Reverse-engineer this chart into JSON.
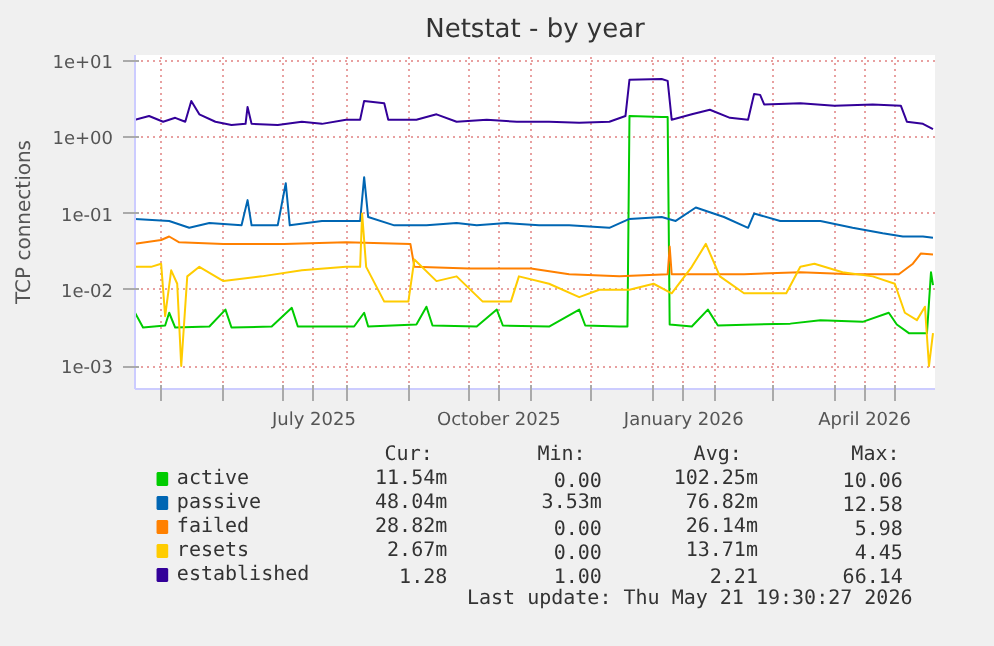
{
  "chart_data": {
    "type": "line",
    "title": "Netstat - by year",
    "ylabel": "TCP connections",
    "log": "y",
    "grid": true,
    "legend": "bottom",
    "xlim": [
      "2025-04-18",
      "2026-05-21"
    ],
    "xticks": [
      {
        "value": "2025-05-01",
        "label": null
      },
      {
        "value": "2025-06-01",
        "label": null
      },
      {
        "value": "2025-07-01",
        "label": null
      },
      {
        "value": "2025-07-16",
        "label": "July 2025"
      },
      {
        "value": "2025-08-01",
        "label": null
      },
      {
        "value": "2025-09-01",
        "label": null
      },
      {
        "value": "2025-10-01",
        "label": null
      },
      {
        "value": "2025-10-16",
        "label": "October 2025"
      },
      {
        "value": "2025-11-01",
        "label": null
      },
      {
        "value": "2025-12-01",
        "label": null
      },
      {
        "value": "2026-01-01",
        "label": null
      },
      {
        "value": "2026-01-16",
        "label": "January 2026"
      },
      {
        "value": "2026-02-01",
        "label": null
      },
      {
        "value": "2026-03-01",
        "label": null
      },
      {
        "value": "2026-04-01",
        "label": null
      },
      {
        "value": "2026-04-16",
        "label": "April 2026"
      },
      {
        "value": "2026-05-01",
        "label": null
      }
    ],
    "ylim": [
      0.0005,
      12
    ],
    "yticks": [
      {
        "value": 0.001,
        "label": "1e-03"
      },
      {
        "value": 0.01,
        "label": "1e-02"
      },
      {
        "value": 0.1,
        "label": "1e-01"
      },
      {
        "value": 1,
        "label": "1e+00"
      },
      {
        "value": 10,
        "label": "1e+01"
      }
    ],
    "series": [
      {
        "name": "active",
        "color": "#00cc00",
        "x": [
          "2025-04-18",
          "2025-04-22",
          "2025-05-03",
          "2025-05-05",
          "2025-05-08",
          "2025-05-25",
          "2025-06-02",
          "2025-06-05",
          "2025-06-25",
          "2025-07-05",
          "2025-07-08",
          "2025-08-05",
          "2025-08-10",
          "2025-08-12",
          "2025-09-05",
          "2025-09-10",
          "2025-09-13",
          "2025-10-05",
          "2025-10-15",
          "2025-10-18",
          "2025-11-10",
          "2025-11-25",
          "2025-11-28",
          "2025-12-15",
          "2025-12-19",
          "2025-12-20",
          "2026-01-05",
          "2026-01-08",
          "2026-01-09",
          "2026-01-20",
          "2026-01-28",
          "2026-02-02",
          "2026-02-20",
          "2026-03-10",
          "2026-03-25",
          "2026-04-15",
          "2026-04-28",
          "2026-05-02",
          "2026-05-08",
          "2026-05-17",
          "2026-05-19",
          "2026-05-20"
        ],
        "values": [
          0.005,
          0.0032,
          0.0034,
          0.005,
          0.0032,
          0.0033,
          0.0055,
          0.0032,
          0.0033,
          0.0058,
          0.0033,
          0.0033,
          0.005,
          0.0033,
          0.0035,
          0.006,
          0.0034,
          0.0033,
          0.0055,
          0.0034,
          0.0033,
          0.0055,
          0.0034,
          0.0033,
          0.0033,
          1.9,
          1.85,
          1.85,
          0.0035,
          0.0033,
          0.0055,
          0.0034,
          0.0035,
          0.0036,
          0.004,
          0.0038,
          0.005,
          0.0035,
          0.0027,
          0.0027,
          0.017,
          0.0115
        ]
      },
      {
        "name": "passive",
        "color": "#0066b3",
        "x": [
          "2025-04-18",
          "2025-05-05",
          "2025-05-15",
          "2025-05-25",
          "2025-06-10",
          "2025-06-13",
          "2025-06-15",
          "2025-06-28",
          "2025-07-02",
          "2025-07-04",
          "2025-07-20",
          "2025-08-08",
          "2025-08-10",
          "2025-08-12",
          "2025-08-25",
          "2025-09-10",
          "2025-09-25",
          "2025-10-05",
          "2025-10-20",
          "2025-11-05",
          "2025-11-20",
          "2025-12-10",
          "2025-12-20",
          "2026-01-05",
          "2026-01-12",
          "2026-01-22",
          "2026-02-05",
          "2026-02-17",
          "2026-02-20",
          "2026-03-05",
          "2026-03-25",
          "2026-04-10",
          "2026-04-25",
          "2026-05-05",
          "2026-05-15",
          "2026-05-20"
        ],
        "values": [
          0.085,
          0.08,
          0.065,
          0.075,
          0.07,
          0.15,
          0.07,
          0.07,
          0.25,
          0.07,
          0.08,
          0.08,
          0.3,
          0.09,
          0.07,
          0.07,
          0.075,
          0.07,
          0.075,
          0.07,
          0.07,
          0.065,
          0.085,
          0.09,
          0.08,
          0.12,
          0.09,
          0.065,
          0.1,
          0.08,
          0.08,
          0.065,
          0.055,
          0.05,
          0.05,
          0.048
        ]
      },
      {
        "name": "failed",
        "color": "#ff8000",
        "x": [
          "2025-04-18",
          "2025-05-01",
          "2025-05-05",
          "2025-05-10",
          "2025-06-01",
          "2025-07-01",
          "2025-08-01",
          "2025-09-02",
          "2025-09-04",
          "2025-10-01",
          "2025-11-01",
          "2025-11-20",
          "2025-12-15",
          "2026-01-08",
          "2026-01-09",
          "2026-01-10",
          "2026-02-15",
          "2026-03-15",
          "2026-04-10",
          "2026-05-03",
          "2026-05-10",
          "2026-05-14",
          "2026-05-20"
        ],
        "values": [
          0.04,
          0.045,
          0.05,
          0.042,
          0.04,
          0.04,
          0.042,
          0.04,
          0.02,
          0.019,
          0.019,
          0.016,
          0.015,
          0.016,
          0.037,
          0.016,
          0.016,
          0.017,
          0.016,
          0.016,
          0.022,
          0.03,
          0.029
        ]
      },
      {
        "name": "resets",
        "color": "#ffcc00",
        "x": [
          "2025-04-18",
          "2025-04-26",
          "2025-05-01",
          "2025-05-03",
          "2025-05-06",
          "2025-05-09",
          "2025-05-11",
          "2025-05-14",
          "2025-05-20",
          "2025-06-01",
          "2025-06-20",
          "2025-07-10",
          "2025-08-01",
          "2025-08-08",
          "2025-08-09",
          "2025-08-11",
          "2025-08-20",
          "2025-09-01",
          "2025-09-04",
          "2025-09-15",
          "2025-09-25",
          "2025-10-08",
          "2025-10-22",
          "2025-10-26",
          "2025-11-10",
          "2025-11-25",
          "2025-12-05",
          "2025-12-20",
          "2026-01-01",
          "2026-01-10",
          "2026-01-20",
          "2026-01-27",
          "2026-02-03",
          "2026-02-15",
          "2026-03-08",
          "2026-03-15",
          "2026-03-22",
          "2026-04-05",
          "2026-04-20",
          "2026-05-01",
          "2026-05-06",
          "2026-05-12",
          "2026-05-16",
          "2026-05-18",
          "2026-05-20"
        ],
        "values": [
          0.02,
          0.02,
          0.022,
          0.0045,
          0.018,
          0.012,
          0.001,
          0.015,
          0.02,
          0.013,
          0.015,
          0.018,
          0.02,
          0.02,
          0.1,
          0.02,
          0.007,
          0.007,
          0.025,
          0.013,
          0.015,
          0.007,
          0.007,
          0.015,
          0.012,
          0.008,
          0.01,
          0.01,
          0.012,
          0.009,
          0.02,
          0.04,
          0.015,
          0.009,
          0.009,
          0.02,
          0.022,
          0.017,
          0.015,
          0.012,
          0.005,
          0.004,
          0.006,
          0.001,
          0.0027
        ]
      },
      {
        "name": "established",
        "color": "#330099",
        "x": [
          "2025-04-18",
          "2025-04-25",
          "2025-05-02",
          "2025-05-08",
          "2025-05-13",
          "2025-05-16",
          "2025-05-20",
          "2025-05-28",
          "2025-06-05",
          "2025-06-12",
          "2025-06-13",
          "2025-06-15",
          "2025-06-28",
          "2025-07-10",
          "2025-07-20",
          "2025-08-01",
          "2025-08-08",
          "2025-08-10",
          "2025-08-20",
          "2025-08-22",
          "2025-09-05",
          "2025-09-15",
          "2025-09-25",
          "2025-10-10",
          "2025-10-25",
          "2025-11-10",
          "2025-11-25",
          "2025-12-10",
          "2025-12-18",
          "2025-12-20",
          "2026-01-05",
          "2026-01-08",
          "2026-01-10",
          "2026-01-20",
          "2026-01-29",
          "2026-02-08",
          "2026-02-17",
          "2026-02-20",
          "2026-02-23",
          "2026-02-25",
          "2026-03-15",
          "2026-04-01",
          "2026-04-20",
          "2026-05-04",
          "2026-05-07",
          "2026-05-15",
          "2026-05-20"
        ],
        "values": [
          1.7,
          1.9,
          1.6,
          1.8,
          1.6,
          3.0,
          2.0,
          1.6,
          1.45,
          1.5,
          2.5,
          1.5,
          1.45,
          1.6,
          1.5,
          1.7,
          1.7,
          3.0,
          2.8,
          1.7,
          1.7,
          2.0,
          1.6,
          1.7,
          1.6,
          1.6,
          1.55,
          1.6,
          1.9,
          5.7,
          5.8,
          5.5,
          1.7,
          2.0,
          2.3,
          1.8,
          1.7,
          3.7,
          3.6,
          2.7,
          2.8,
          2.6,
          2.7,
          2.6,
          1.6,
          1.5,
          1.28
        ]
      }
    ],
    "annotations": [
      "Cur:",
      "Min:",
      "Avg:",
      "Max:",
      "11.54m",
      "0.00",
      "102.25m",
      "10.06",
      "48.04m",
      "3.53m",
      "76.82m",
      "12.58",
      "28.82m",
      "0.00",
      "26.14m",
      "5.98",
      "2.67m",
      "0.00",
      "13.71m",
      "4.45",
      "1.28",
      "1.00",
      "2.21",
      "66.14",
      "Last update: Thu May 21 19:30:27 2026"
    ]
  }
}
